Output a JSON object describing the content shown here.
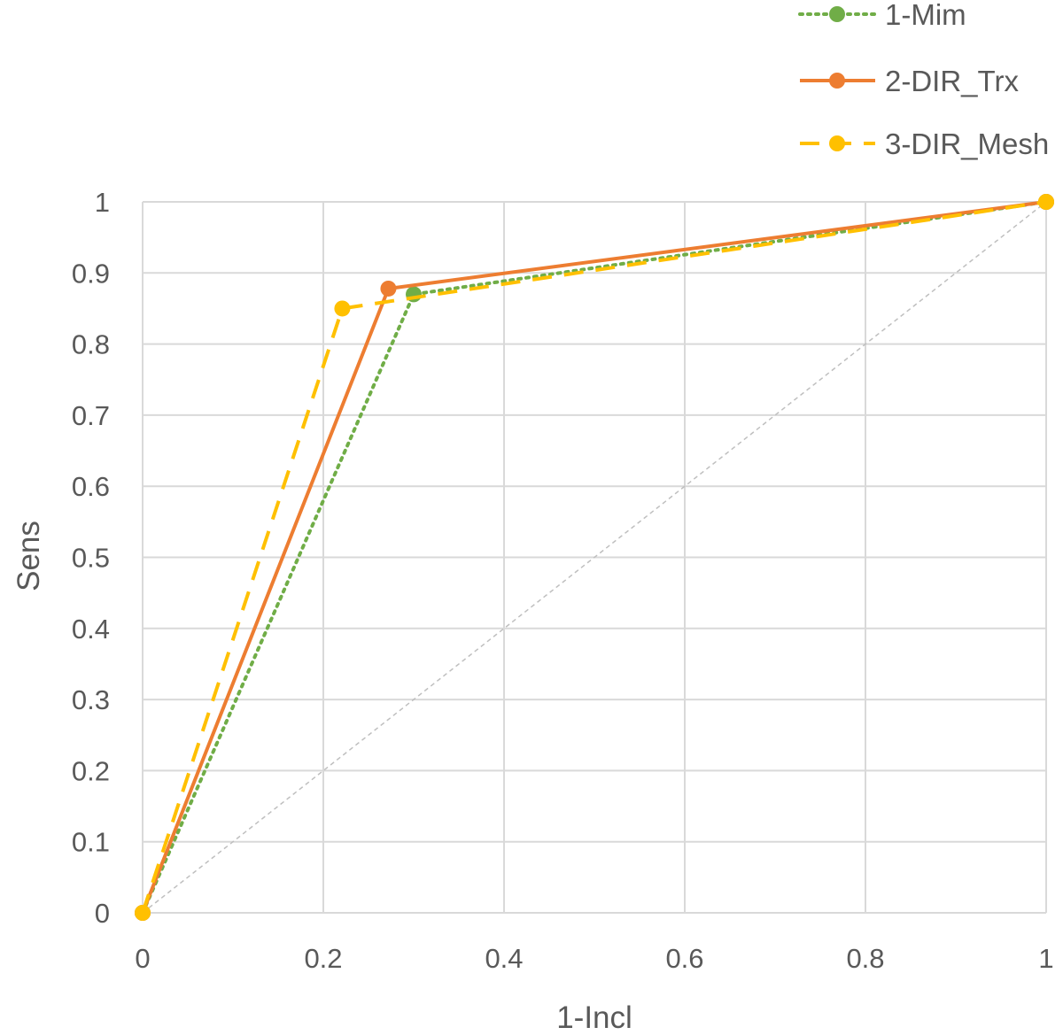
{
  "chart_data": {
    "type": "line",
    "title": "",
    "xlabel": "1-Incl",
    "ylabel": "Sens",
    "xlim": [
      0,
      1
    ],
    "ylim": [
      0,
      1
    ],
    "x_ticks": [
      "0",
      "0.2",
      "0.4",
      "0.6",
      "0.8",
      "1"
    ],
    "y_ticks": [
      "0",
      "0.1",
      "0.2",
      "0.3",
      "0.4",
      "0.5",
      "0.6",
      "0.7",
      "0.8",
      "0.9",
      "1"
    ],
    "grid": true,
    "legend_position": "top-right",
    "reference_line": {
      "x": [
        0,
        1
      ],
      "y": [
        0,
        1
      ],
      "color": "#bfbfbf",
      "style": "dashed"
    },
    "series": [
      {
        "name": "1-Mim",
        "color": "#70ad47",
        "style": "dotted",
        "x": [
          0,
          0.3,
          1
        ],
        "y": [
          0,
          0.87,
          1
        ]
      },
      {
        "name": "2-DIR_Trx",
        "color": "#ed7d31",
        "style": "solid",
        "x": [
          0,
          0.272,
          1
        ],
        "y": [
          0,
          0.878,
          1
        ]
      },
      {
        "name": "3-DIR_Mesh",
        "color": "#ffc000",
        "style": "dashed",
        "x": [
          0,
          0.221,
          1
        ],
        "y": [
          0,
          0.85,
          1
        ]
      }
    ]
  }
}
